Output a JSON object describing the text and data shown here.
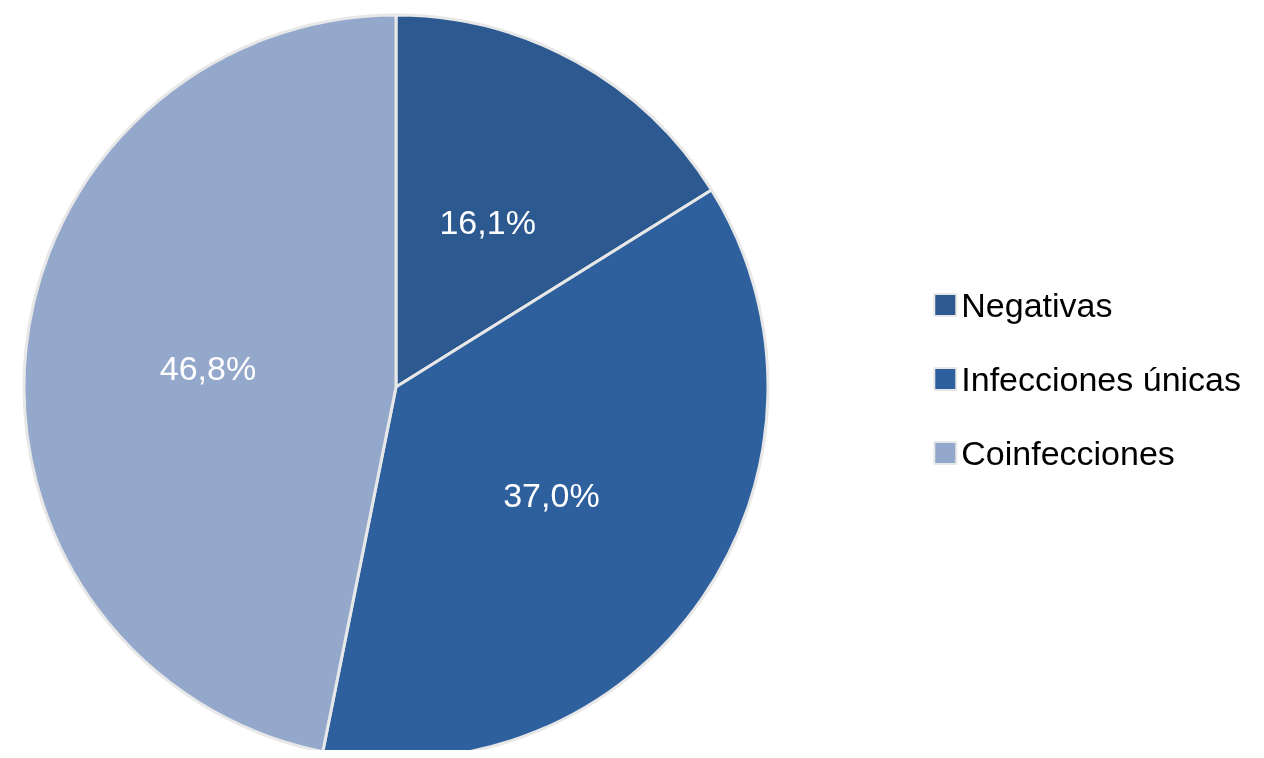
{
  "chart_data": {
    "type": "pie",
    "categories": [
      "Negativas",
      "Infecciones únicas",
      "Coinfecciones"
    ],
    "values": [
      16.1,
      37.0,
      46.8
    ],
    "colors": [
      "#2c5a90",
      "#2f609e",
      "#94a8cc"
    ],
    "value_labels": [
      "16,1%",
      "37,0%",
      "46,8%"
    ],
    "legend": "right"
  }
}
